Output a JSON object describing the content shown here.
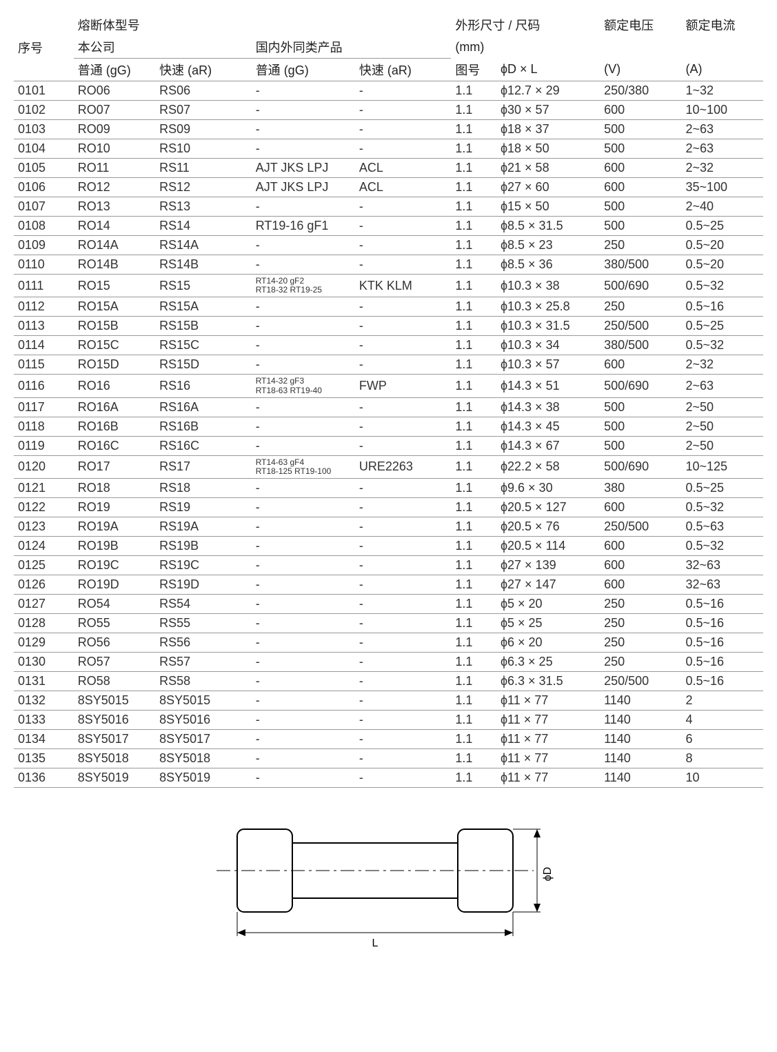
{
  "headers": {
    "seq": "序号",
    "model_group": "熔断体型号",
    "company": "本公司",
    "equiv": "国内外同类产品",
    "size_group": "外形尺寸 / 尺码",
    "size_unit": "(mm)",
    "voltage": "额定电压",
    "current": "额定电流",
    "gg1": "普通 (gG)",
    "ar1": "快速 (aR)",
    "gg2": "普通 (gG)",
    "ar2": "快速 (aR)",
    "fig": "图号",
    "dl": "ϕD × L",
    "v": "(V)",
    "a": "(A)"
  },
  "diagram": {
    "L": "L",
    "D": "ϕD"
  },
  "rows": [
    {
      "seq": "0101",
      "ro": "RO06",
      "rs": "RS06",
      "gg": "-",
      "ar": "-",
      "fig": "1.1",
      "dl": "ϕ12.7 × 29",
      "v": "250/380",
      "a": "1~32"
    },
    {
      "seq": "0102",
      "ro": "RO07",
      "rs": "RS07",
      "gg": "-",
      "ar": "-",
      "fig": "1.1",
      "dl": "ϕ30 × 57",
      "v": "600",
      "a": "10~100"
    },
    {
      "seq": "0103",
      "ro": "RO09",
      "rs": "RS09",
      "gg": "-",
      "ar": "-",
      "fig": "1.1",
      "dl": "ϕ18 × 37",
      "v": "500",
      "a": "2~63"
    },
    {
      "seq": "0104",
      "ro": "RO10",
      "rs": "RS10",
      "gg": "-",
      "ar": "-",
      "fig": "1.1",
      "dl": "ϕ18 × 50",
      "v": "500",
      "a": "2~63"
    },
    {
      "seq": "0105",
      "ro": "RO11",
      "rs": "RS11",
      "gg": "AJT JKS LPJ",
      "ar": "ACL",
      "fig": "1.1",
      "dl": "ϕ21 × 58",
      "v": "600",
      "a": "2~32"
    },
    {
      "seq": "0106",
      "ro": "RO12",
      "rs": "RS12",
      "gg": "AJT JKS LPJ",
      "ar": "ACL",
      "fig": "1.1",
      "dl": "ϕ27 × 60",
      "v": "600",
      "a": "35~100"
    },
    {
      "seq": "0107",
      "ro": "RO13",
      "rs": "RS13",
      "gg": "-",
      "ar": "-",
      "fig": "1.1",
      "dl": "ϕ15 × 50",
      "v": "500",
      "a": "2~40"
    },
    {
      "seq": "0108",
      "ro": "RO14",
      "rs": "RS14",
      "gg": "RT19-16 gF1",
      "ar": "-",
      "fig": "1.1",
      "dl": "ϕ8.5 × 31.5",
      "v": "500",
      "a": "0.5~25"
    },
    {
      "seq": "0109",
      "ro": "RO14A",
      "rs": "RS14A",
      "gg": "-",
      "ar": "-",
      "fig": "1.1",
      "dl": "ϕ8.5 × 23",
      "v": "250",
      "a": "0.5~20"
    },
    {
      "seq": "0110",
      "ro": "RO14B",
      "rs": "RS14B",
      "gg": "-",
      "ar": "-",
      "fig": "1.1",
      "dl": "ϕ8.5 × 36",
      "v": "380/500",
      "a": "0.5~20"
    },
    {
      "seq": "0111",
      "ro": "RO15",
      "rs": "RS15",
      "gg": "RT14-20 gF2\nRT18-32 RT19-25",
      "ar": "KTK KLM",
      "fig": "1.1",
      "dl": "ϕ10.3 × 38",
      "v": "500/690",
      "a": "0.5~32",
      "small": true
    },
    {
      "seq": "0112",
      "ro": "RO15A",
      "rs": "RS15A",
      "gg": "-",
      "ar": "-",
      "fig": "1.1",
      "dl": "ϕ10.3 × 25.8",
      "v": "250",
      "a": "0.5~16"
    },
    {
      "seq": "0113",
      "ro": "RO15B",
      "rs": "RS15B",
      "gg": "-",
      "ar": "-",
      "fig": "1.1",
      "dl": "ϕ10.3 × 31.5",
      "v": "250/500",
      "a": "0.5~25"
    },
    {
      "seq": "0114",
      "ro": "RO15C",
      "rs": "RS15C",
      "gg": "-",
      "ar": "-",
      "fig": "1.1",
      "dl": "ϕ10.3 × 34",
      "v": "380/500",
      "a": "0.5~32"
    },
    {
      "seq": "0115",
      "ro": "RO15D",
      "rs": "RS15D",
      "gg": "-",
      "ar": "-",
      "fig": "1.1",
      "dl": "ϕ10.3 × 57",
      "v": "600",
      "a": "2~32"
    },
    {
      "seq": "0116",
      "ro": "RO16",
      "rs": "RS16",
      "gg": "RT14-32 gF3\nRT18-63 RT19-40",
      "ar": "FWP",
      "fig": "1.1",
      "dl": "ϕ14.3 × 51",
      "v": "500/690",
      "a": "2~63",
      "small": true
    },
    {
      "seq": "0117",
      "ro": "RO16A",
      "rs": "RS16A",
      "gg": "-",
      "ar": "-",
      "fig": "1.1",
      "dl": "ϕ14.3 × 38",
      "v": "500",
      "a": "2~50"
    },
    {
      "seq": "0118",
      "ro": "RO16B",
      "rs": "RS16B",
      "gg": "-",
      "ar": "-",
      "fig": "1.1",
      "dl": "ϕ14.3 × 45",
      "v": "500",
      "a": "2~50"
    },
    {
      "seq": "0119",
      "ro": "RO16C",
      "rs": "RS16C",
      "gg": "-",
      "ar": "-",
      "fig": "1.1",
      "dl": "ϕ14.3 × 67",
      "v": "500",
      "a": "2~50"
    },
    {
      "seq": "0120",
      "ro": "RO17",
      "rs": "RS17",
      "gg": "RT14-63 gF4\nRT18-125 RT19-100",
      "ar": "URE2263",
      "fig": "1.1",
      "dl": "ϕ22.2 × 58",
      "v": "500/690",
      "a": "10~125",
      "small": true
    },
    {
      "seq": "0121",
      "ro": "RO18",
      "rs": "RS18",
      "gg": "-",
      "ar": "-",
      "fig": "1.1",
      "dl": "ϕ9.6 × 30",
      "v": "380",
      "a": "0.5~25"
    },
    {
      "seq": "0122",
      "ro": "RO19",
      "rs": "RS19",
      "gg": "-",
      "ar": "-",
      "fig": "1.1",
      "dl": "ϕ20.5 × 127",
      "v": "600",
      "a": "0.5~32"
    },
    {
      "seq": "0123",
      "ro": "RO19A",
      "rs": "RS19A",
      "gg": "-",
      "ar": "-",
      "fig": "1.1",
      "dl": "ϕ20.5 × 76",
      "v": "250/500",
      "a": "0.5~63"
    },
    {
      "seq": "0124",
      "ro": "RO19B",
      "rs": "RS19B",
      "gg": "-",
      "ar": "-",
      "fig": "1.1",
      "dl": "ϕ20.5 × 114",
      "v": "600",
      "a": "0.5~32"
    },
    {
      "seq": "0125",
      "ro": "RO19C",
      "rs": "RS19C",
      "gg": "-",
      "ar": "-",
      "fig": "1.1",
      "dl": "ϕ27 × 139",
      "v": "600",
      "a": "32~63"
    },
    {
      "seq": "0126",
      "ro": "RO19D",
      "rs": "RS19D",
      "gg": "-",
      "ar": "-",
      "fig": "1.1",
      "dl": "ϕ27 × 147",
      "v": "600",
      "a": "32~63"
    },
    {
      "seq": "0127",
      "ro": "RO54",
      "rs": "RS54",
      "gg": "-",
      "ar": "-",
      "fig": "1.1",
      "dl": "ϕ5 × 20",
      "v": "250",
      "a": "0.5~16"
    },
    {
      "seq": "0128",
      "ro": "RO55",
      "rs": "RS55",
      "gg": "-",
      "ar": "-",
      "fig": "1.1",
      "dl": "ϕ5 × 25",
      "v": "250",
      "a": "0.5~16"
    },
    {
      "seq": "0129",
      "ro": "RO56",
      "rs": "RS56",
      "gg": "-",
      "ar": "-",
      "fig": "1.1",
      "dl": "ϕ6 × 20",
      "v": "250",
      "a": "0.5~16"
    },
    {
      "seq": "0130",
      "ro": "RO57",
      "rs": "RS57",
      "gg": "-",
      "ar": "-",
      "fig": "1.1",
      "dl": "ϕ6.3 × 25",
      "v": "250",
      "a": "0.5~16"
    },
    {
      "seq": "0131",
      "ro": "RO58",
      "rs": "RS58",
      "gg": "-",
      "ar": "-",
      "fig": "1.1",
      "dl": "ϕ6.3 × 31.5",
      "v": "250/500",
      "a": "0.5~16"
    },
    {
      "seq": "0132",
      "ro": "8SY5015",
      "rs": "8SY5015",
      "gg": "-",
      "ar": "-",
      "fig": "1.1",
      "dl": "ϕ11 × 77",
      "v": "1140",
      "a": "2"
    },
    {
      "seq": "0133",
      "ro": "8SY5016",
      "rs": "8SY5016",
      "gg": "-",
      "ar": "-",
      "fig": "1.1",
      "dl": "ϕ11 × 77",
      "v": "1140",
      "a": "4"
    },
    {
      "seq": "0134",
      "ro": "8SY5017",
      "rs": "8SY5017",
      "gg": "-",
      "ar": "-",
      "fig": "1.1",
      "dl": "ϕ11 × 77",
      "v": "1140",
      "a": "6"
    },
    {
      "seq": "0135",
      "ro": "8SY5018",
      "rs": "8SY5018",
      "gg": "-",
      "ar": "-",
      "fig": "1.1",
      "dl": "ϕ11 × 77",
      "v": "1140",
      "a": "8"
    },
    {
      "seq": "0136",
      "ro": "8SY5019",
      "rs": "8SY5019",
      "gg": "-",
      "ar": "-",
      "fig": "1.1",
      "dl": "ϕ11 × 77",
      "v": "1140",
      "a": "10"
    }
  ]
}
